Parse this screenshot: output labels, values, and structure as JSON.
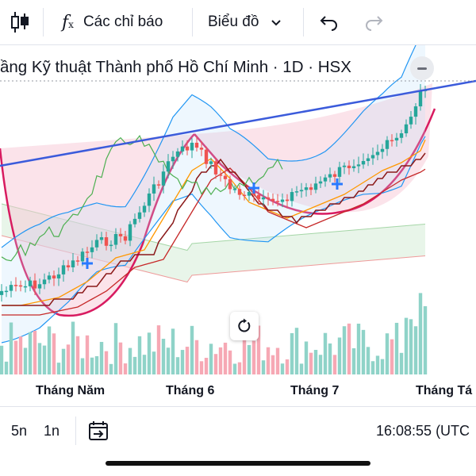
{
  "toolbar": {
    "indicators_label": "Các chỉ báo",
    "chart_type_label": "Biểu đồ"
  },
  "chart": {
    "symbol_title": "ầng Kỹ thuật Thành phố Hồ Chí Minh · 1D · HSX",
    "month_labels": [
      "Tháng Năm",
      "Tháng 6",
      "Tháng 7",
      "Tháng Tá"
    ],
    "colors": {
      "up": "#26a69a",
      "down": "#ef5350",
      "vol_up": "#8fd3c8",
      "vol_down": "#f6a8b4",
      "trendline": "#3b5bdb",
      "cup_pattern": "#d81b60",
      "cup_fill": "#f8c7d6",
      "bollinger": "#2196f3",
      "ema_orange": "#ff9800",
      "ema_red": "#c62828",
      "chikou": "#4caf50",
      "kijun": "#8b1a1a",
      "cloud_green": "#a5d6a7",
      "cloud_red": "#ef9a9a",
      "marker": "#2979ff"
    }
  },
  "bottombar": {
    "range_5d": "5n",
    "range_1m": "1n",
    "clock": "16:08:55 (UTC"
  }
}
